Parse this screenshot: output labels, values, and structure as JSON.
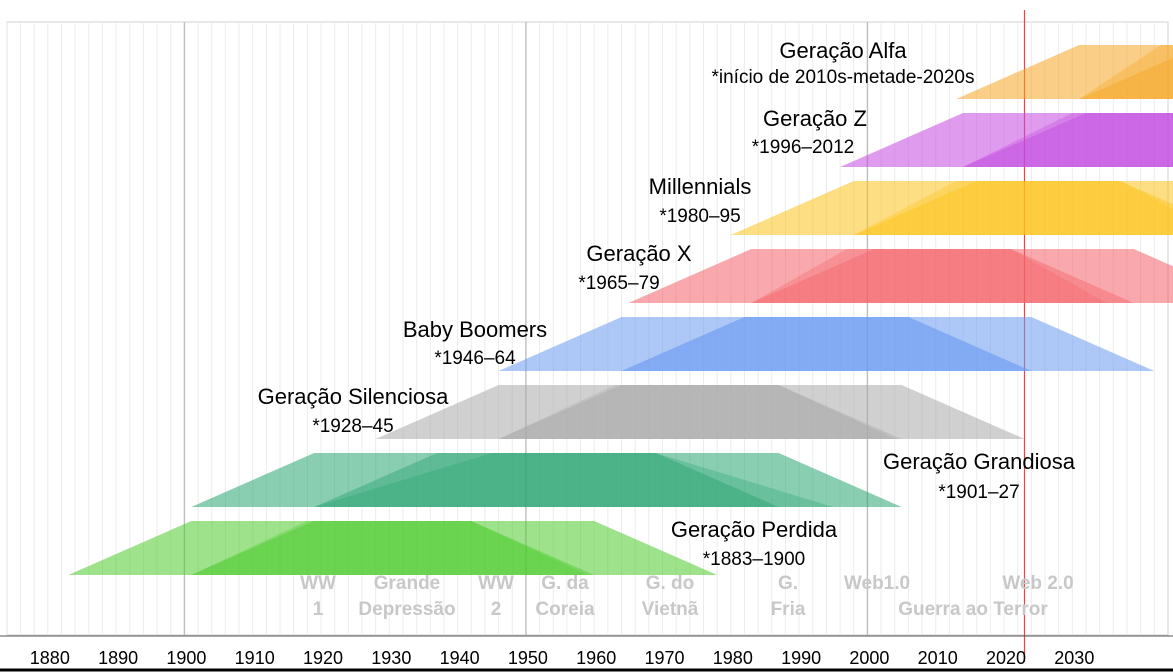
{
  "chart_data": {
    "type": "area",
    "title": "",
    "xlabel": "",
    "ylabel": "",
    "xlim": [
      1873,
      2043
    ],
    "grid": true,
    "x_ticks": [
      1880,
      1890,
      1900,
      1910,
      1920,
      1930,
      1940,
      1950,
      1960,
      1970,
      1980,
      1990,
      2000,
      2010,
      2020,
      2030
    ],
    "current_year_line": 2023,
    "generations": [
      {
        "name": "Geração Alfa",
        "years": "*início de 2010s-metade-2020s",
        "start": 2013,
        "end": 2025,
        "color": "#f5a623"
      },
      {
        "name": "Geração Z",
        "years": "*1996–2012",
        "start": 1996,
        "end": 2012,
        "color": "#c44be0"
      },
      {
        "name": "Millennials",
        "years": "*1980–95",
        "start": 1980,
        "end": 1995,
        "color": "#fcc21b"
      },
      {
        "name": "Geração X",
        "years": "*1965–79",
        "start": 1965,
        "end": 1979,
        "color": "#f4636a"
      },
      {
        "name": "Baby Boomers",
        "years": "*1946–64",
        "start": 1946,
        "end": 1964,
        "color": "#6a9bf0"
      },
      {
        "name": "Geração Silenciosa",
        "years": "*1928–45",
        "start": 1928,
        "end": 1945,
        "color": "#a9a9a9"
      },
      {
        "name": "Geração Grandiosa",
        "years": "*1901–27",
        "start": 1901,
        "end": 1927,
        "color": "#2aa573"
      },
      {
        "name": "Geração Perdida",
        "years": "*1883–1900",
        "start": 1883,
        "end": 1900,
        "color": "#4ecb2e"
      }
    ],
    "events": [
      {
        "lines": [
          "WW",
          "1"
        ],
        "year": 1916
      },
      {
        "lines": [
          "Grande",
          "Depressão"
        ],
        "year": 1935
      },
      {
        "lines": [
          "WW",
          "2"
        ],
        "year": 1942
      },
      {
        "lines": [
          "G. da",
          "Coreia"
        ],
        "year": 1952
      },
      {
        "lines": [
          "G. do",
          "Vietnã"
        ],
        "year": 1967
      },
      {
        "lines": [
          "G.",
          "Fria"
        ],
        "year": 1983
      },
      {
        "lines": [
          "Web1.0"
        ],
        "year": 1998
      },
      {
        "lines": [
          "Web 2.0"
        ],
        "year": 2018
      },
      {
        "lines": [
          "",
          "Guerra ao Terror"
        ],
        "year": 2012
      }
    ]
  }
}
